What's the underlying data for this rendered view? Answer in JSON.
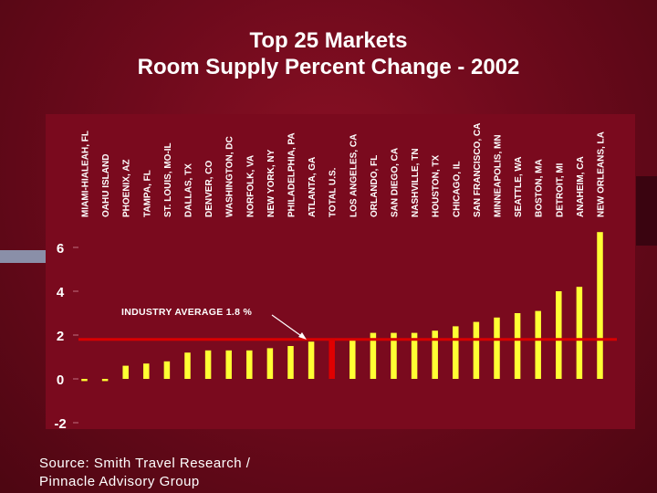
{
  "title_line1": "Top 25 Markets",
  "title_line2": "Room Supply Percent Change - 2002",
  "source_line1": "Source: Smith Travel Research /",
  "source_line2": "Pinnacle Advisory Group",
  "colors": {
    "bar": "#ffff33",
    "highlight": "#e00000",
    "avg_line": "#d80000",
    "text": "#ffffff"
  },
  "chart_data": {
    "type": "bar",
    "categories": [
      "MIAMI-HIALEAH, FL",
      "OAHU ISLAND",
      "PHOENIX, AZ",
      "TAMPA, FL",
      "ST. LOUIS, MO-IL",
      "DALLAS, TX",
      "DENVER, CO",
      "WASHINGTON, DC",
      "NORFOLK, VA",
      "NEW YORK, NY",
      "PHILADELPHIA, PA",
      "ATLANTA, GA",
      "TOTAL U.S.",
      "LOS ANGELES, CA",
      "ORLANDO, FL",
      "SAN DIEGO, CA",
      "NASHVILLE, TN",
      "HOUSTON, TX",
      "CHICAGO, IL",
      "SAN FRANCISCO, CA",
      "MINNEAPOLIS, MN",
      "SEATTLE, WA",
      "BOSTON, MA",
      "DETROIT, MI",
      "ANAHEIM, CA",
      "NEW ORLEANS, LA"
    ],
    "values": [
      -0.1,
      -0.1,
      0.6,
      0.7,
      0.8,
      1.2,
      1.3,
      1.3,
      1.3,
      1.4,
      1.5,
      1.7,
      1.8,
      1.8,
      2.1,
      2.1,
      2.1,
      2.2,
      2.4,
      2.6,
      2.8,
      3.0,
      3.1,
      4.0,
      4.2,
      6.7
    ],
    "highlight_category": "TOTAL U.S.",
    "y_ticks": [
      "6",
      "4",
      "2",
      "0",
      "-2"
    ],
    "y_tick_values": [
      6,
      4,
      2,
      0,
      -2
    ],
    "ylim": [
      -2,
      7
    ],
    "average_value": 1.8,
    "annotation": "INDUSTRY AVERAGE 1.8 %",
    "grid": false,
    "legend": "none"
  }
}
